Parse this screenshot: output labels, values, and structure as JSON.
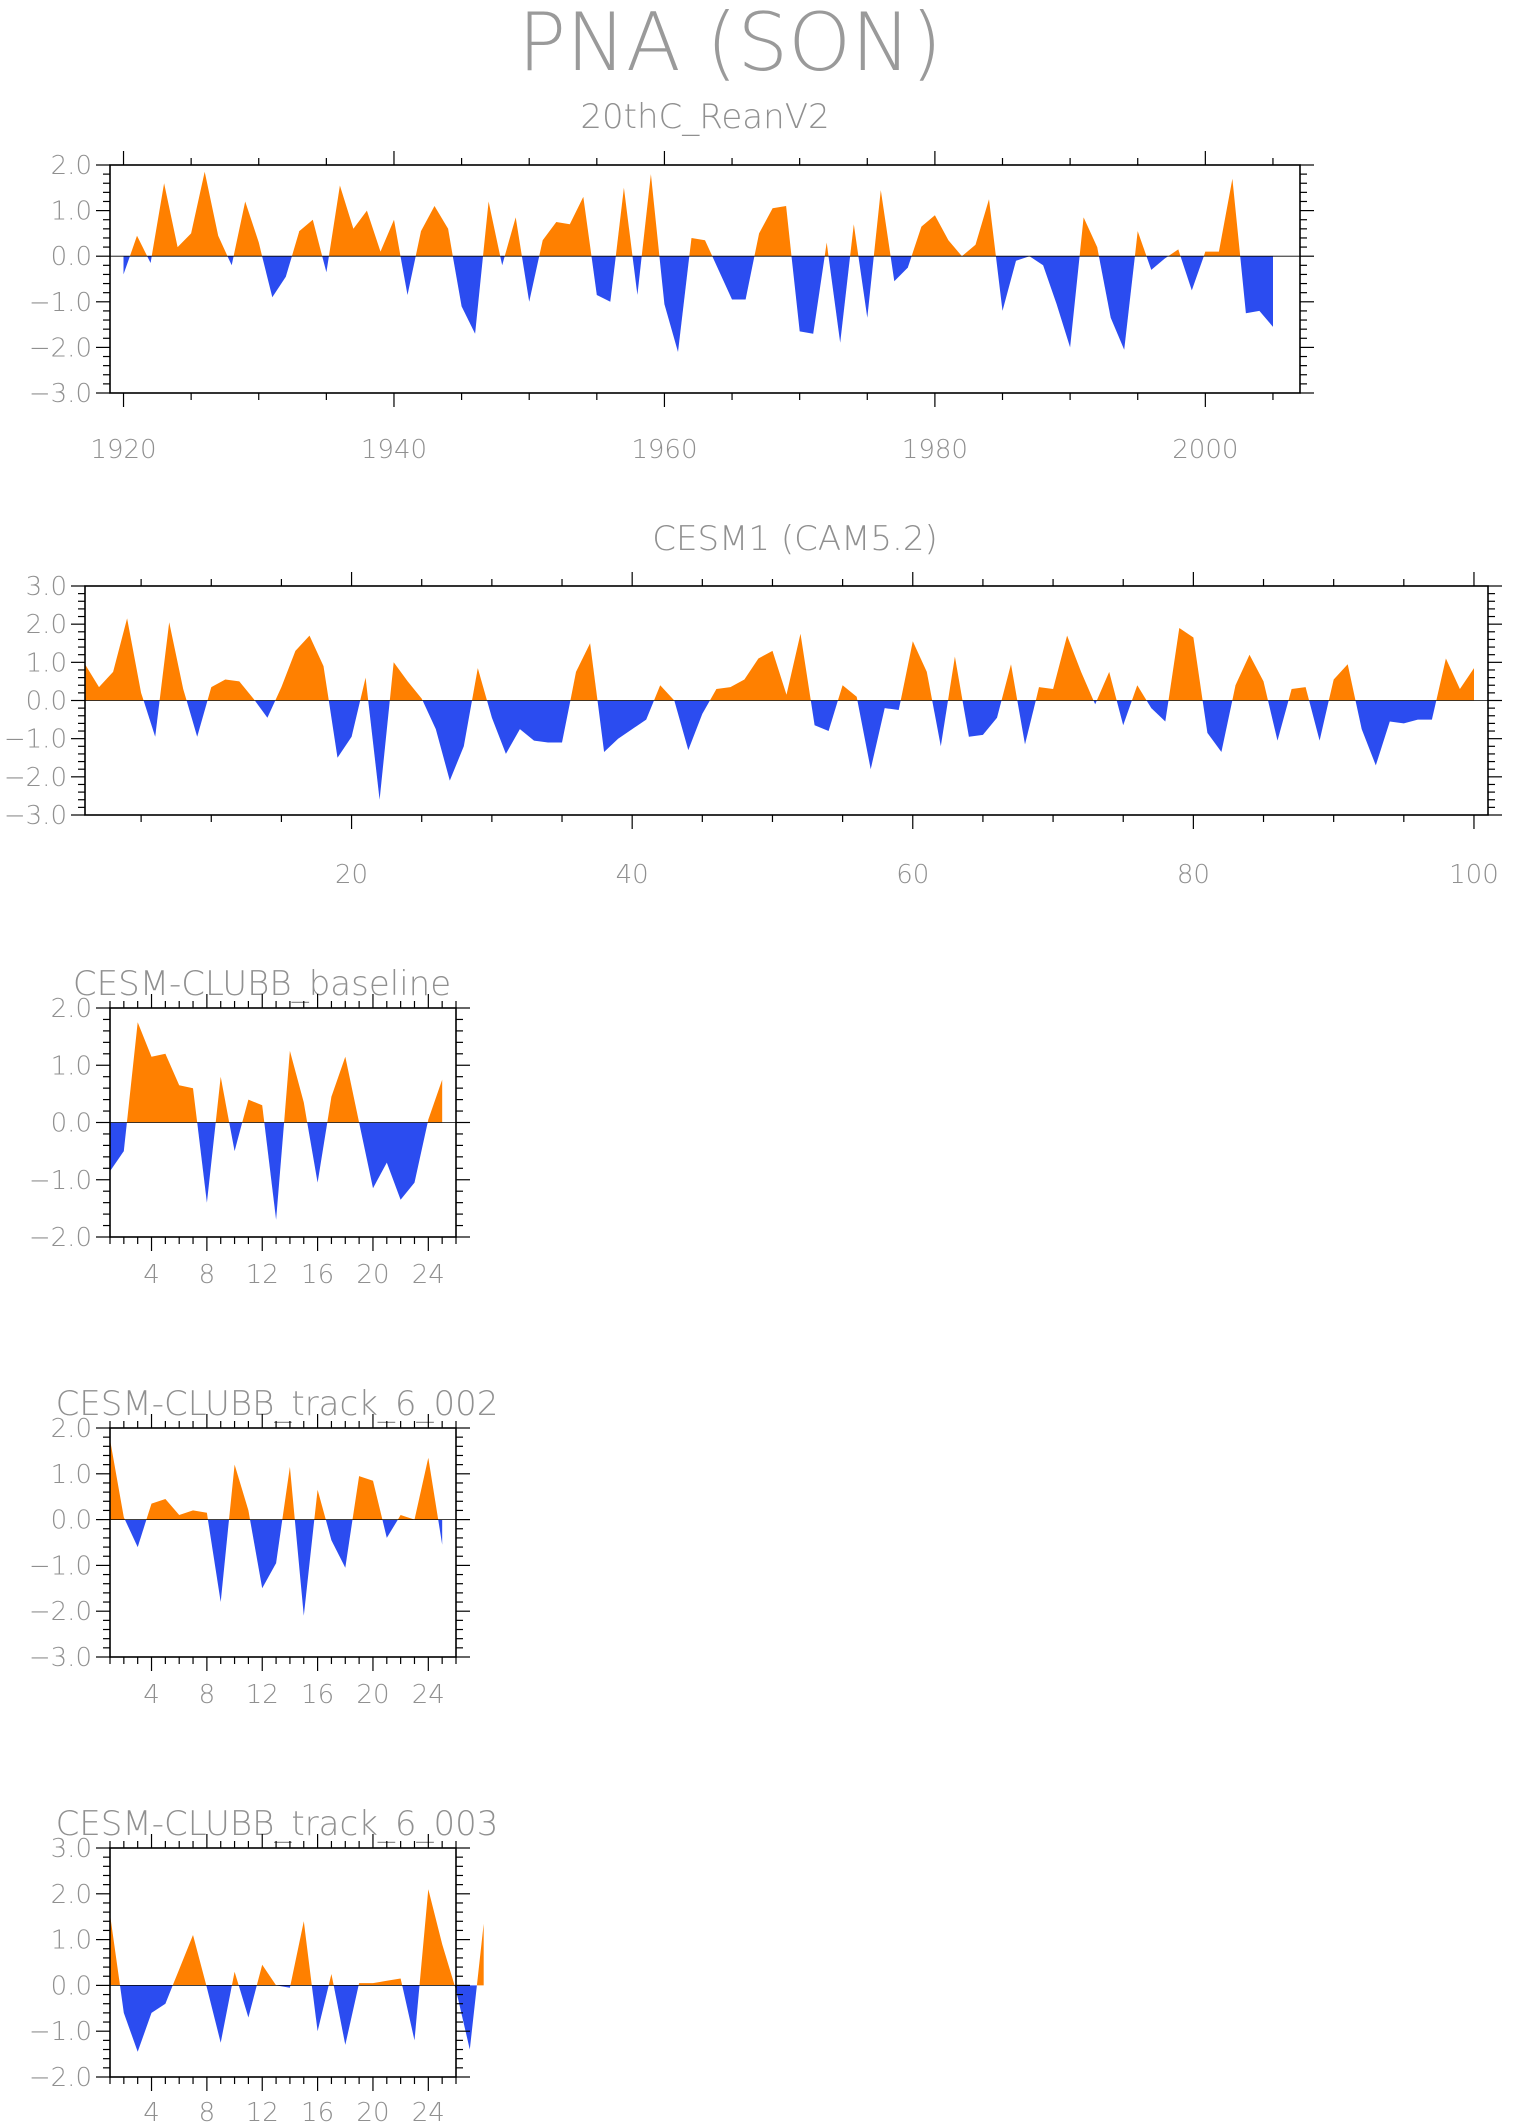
{
  "title": "PNA (SON)",
  "colors": {
    "positive": "#ff8000",
    "negative": "#2b4cf0"
  },
  "chart_data": [
    {
      "type": "area",
      "title": "20thC_ReanV2",
      "x_start": 1920,
      "xlim": [
        1919,
        2007
      ],
      "x_ticks": [
        1920,
        1940,
        1960,
        1980,
        2000
      ],
      "ylim": [
        -3,
        2
      ],
      "y_ticks": [
        "2.0",
        "1.0",
        "0.0",
        "−1.0",
        "−2.0",
        "−3.0"
      ],
      "values": [
        -0.4,
        0.45,
        -0.15,
        1.6,
        0.2,
        0.5,
        1.85,
        0.45,
        -0.2,
        1.2,
        0.3,
        -0.9,
        -0.45,
        0.55,
        0.8,
        -0.35,
        1.55,
        0.6,
        1.0,
        0.1,
        0.8,
        -0.85,
        0.55,
        1.1,
        0.6,
        -1.1,
        -1.7,
        1.2,
        -0.2,
        0.85,
        -1.0,
        0.35,
        0.75,
        0.7,
        1.3,
        -0.85,
        -1.0,
        1.5,
        -0.85,
        1.8,
        -1.05,
        -2.1,
        0.4,
        0.35,
        -0.3,
        -0.95,
        -0.95,
        0.5,
        1.05,
        1.1,
        -1.65,
        -1.7,
        0.3,
        -1.9,
        0.7,
        -1.35,
        1.45,
        -0.55,
        -0.25,
        0.65,
        0.9,
        0.35,
        0.0,
        0.25,
        1.25,
        -1.2,
        -0.1,
        0.0,
        -0.2,
        -1.05,
        -2.0,
        0.85,
        0.2,
        -1.35,
        -2.05,
        0.55,
        -0.3,
        -0.05,
        0.15,
        -0.75,
        0.1,
        0.1,
        1.7,
        -1.25,
        -1.2,
        -1.55
      ]
    },
    {
      "type": "area",
      "title": "CESM1 (CAM5.2)",
      "x_start": 1,
      "xlim": [
        1,
        101
      ],
      "x_ticks": [
        20,
        40,
        60,
        80,
        100
      ],
      "ylim": [
        -3,
        3
      ],
      "y_ticks": [
        "3.0",
        "2.0",
        "1.0",
        "0.0",
        "−1.0",
        "−2.0",
        "−3.0"
      ],
      "values": [
        0.95,
        0.35,
        0.75,
        2.15,
        0.2,
        -0.95,
        2.05,
        0.3,
        -0.95,
        0.35,
        0.55,
        0.5,
        0.05,
        -0.45,
        0.35,
        1.3,
        1.7,
        0.9,
        -1.5,
        -0.95,
        0.6,
        -2.6,
        1.0,
        0.5,
        0.05,
        -0.75,
        -2.1,
        -1.2,
        0.85,
        -0.45,
        -1.4,
        -0.75,
        -1.05,
        -1.1,
        -1.1,
        0.75,
        1.5,
        -1.35,
        -1.0,
        -0.75,
        -0.5,
        0.4,
        0.0,
        -1.3,
        -0.35,
        0.3,
        0.35,
        0.55,
        1.1,
        1.3,
        0.15,
        1.75,
        -0.65,
        -0.8,
        0.4,
        0.1,
        -1.8,
        -0.2,
        -0.25,
        1.55,
        0.75,
        -1.2,
        1.15,
        -0.95,
        -0.9,
        -0.45,
        0.95,
        -1.15,
        0.35,
        0.3,
        1.7,
        0.75,
        -0.1,
        0.75,
        -0.65,
        0.4,
        -0.2,
        -0.55,
        1.9,
        1.65,
        -0.85,
        -1.35,
        0.4,
        1.2,
        0.5,
        -1.05,
        0.3,
        0.35,
        -1.05,
        0.55,
        0.95,
        -0.75,
        -1.7,
        -0.55,
        -0.6,
        -0.5,
        -0.5,
        1.1,
        0.3,
        0.85
      ]
    },
    {
      "type": "area",
      "title": "CESM-CLUBB_baseline",
      "x_start": 1,
      "xlim": [
        1,
        26
      ],
      "x_ticks": [
        4,
        8,
        12,
        16,
        20,
        24
      ],
      "ylim": [
        -2,
        2
      ],
      "y_ticks": [
        "2.0",
        "1.0",
        "0.0",
        "−1.0",
        "−2.0"
      ],
      "values": [
        -0.85,
        -0.5,
        1.75,
        1.15,
        1.2,
        0.65,
        0.6,
        -1.4,
        0.8,
        -0.5,
        0.4,
        0.3,
        -1.7,
        1.25,
        0.35,
        -1.05,
        0.45,
        1.15,
        0.0,
        -1.15,
        -0.7,
        -1.35,
        -1.05,
        0.05,
        0.75
      ]
    },
    {
      "type": "area",
      "title": "CESM-CLUBB_track_6_002",
      "x_start": 1,
      "xlim": [
        1,
        26
      ],
      "x_ticks": [
        4,
        8,
        12,
        16,
        20,
        24
      ],
      "ylim": [
        -3,
        2
      ],
      "y_ticks": [
        "2.0",
        "1.0",
        "0.0",
        "−1.0",
        "−2.0",
        "−3.0"
      ],
      "values": [
        1.75,
        0.05,
        -0.6,
        0.35,
        0.45,
        0.1,
        0.2,
        0.15,
        -1.8,
        1.2,
        0.2,
        -1.5,
        -0.95,
        1.15,
        -2.1,
        0.65,
        -0.45,
        -1.05,
        0.95,
        0.85,
        -0.4,
        0.1,
        0.0,
        1.35,
        -0.55
      ]
    },
    {
      "type": "area",
      "title": "CESM-CLUBB_track_6_003",
      "x_start": 1,
      "xlim": [
        1,
        26
      ],
      "x_ticks": [
        4,
        8,
        12,
        16,
        20,
        24
      ],
      "ylim": [
        -2,
        3
      ],
      "y_ticks": [
        "3.0",
        "2.0",
        "1.0",
        "0.0",
        "−1.0",
        "−2.0"
      ],
      "values": [
        1.55,
        -0.6,
        -1.45,
        -0.6,
        -0.4,
        0.35,
        1.1,
        -0.05,
        -1.25,
        0.3,
        -0.7,
        0.45,
        0.0,
        -0.05,
        1.4,
        -1.0,
        0.25,
        -1.3,
        0.05,
        0.05,
        0.1,
        0.15,
        -1.2,
        2.1,
        0.9,
        -0.1,
        -1.4,
        1.35
      ]
    }
  ]
}
